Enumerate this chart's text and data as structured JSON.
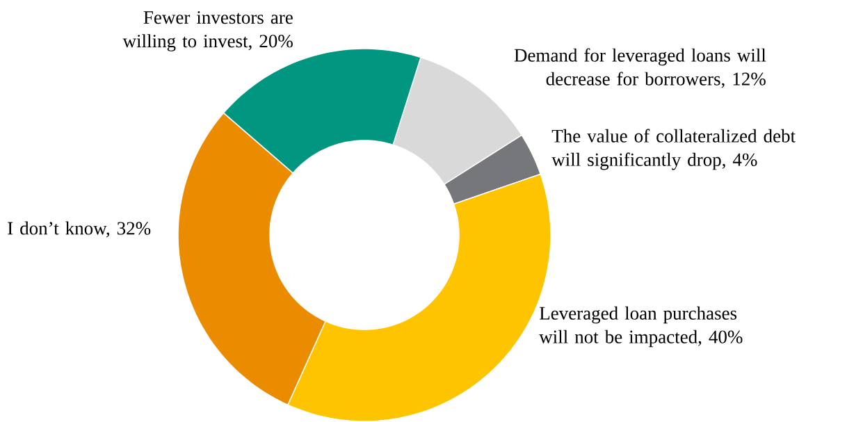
{
  "chart_data": {
    "type": "donut",
    "categories": [
      "Demand for leveraged loans will decrease for borrowers, 12%",
      "The value of collateralized debt will significantly drop, 4%",
      "Leveraged loan purchases will not be impacted, 40%",
      "I don’t know, 32%",
      "Fewer investors are willing to invest, 20%"
    ],
    "values": [
      12,
      4,
      40,
      32,
      20
    ],
    "colors": [
      "#d9d9d9",
      "#75777b",
      "#ffc400",
      "#eb8c00",
      "#00967f"
    ]
  }
}
